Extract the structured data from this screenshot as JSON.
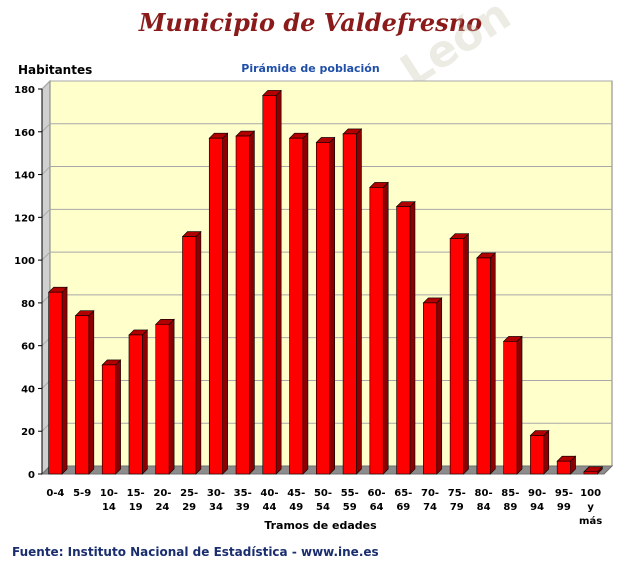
{
  "title": "Municipio de Valdefresno",
  "footer": "Fuente: Instituto Nacional de Estadística - www.ine.es",
  "watermark": "Diputación de León",
  "colors": {
    "bar": "#ff0000",
    "bar_side": "#8b0000",
    "plot_bg": "#ffffcc",
    "title": "#8b1a1a",
    "subtitle": "#1f4fa8"
  },
  "chart_data": {
    "type": "bar",
    "title": "Pirámide de población",
    "ylabel": "Habitantes",
    "xlabel": "Tramos de edades",
    "ylim": [
      0,
      180
    ],
    "yticks": [
      0,
      20,
      40,
      60,
      80,
      100,
      120,
      140,
      160,
      180
    ],
    "grid": true,
    "categories": [
      [
        "0-4"
      ],
      [
        "5-9"
      ],
      [
        "10-",
        "14"
      ],
      [
        "15-",
        "19"
      ],
      [
        "20-",
        "24"
      ],
      [
        "25-",
        "29"
      ],
      [
        "30-",
        "34"
      ],
      [
        "35-",
        "39"
      ],
      [
        "40-",
        "44"
      ],
      [
        "45-",
        "49"
      ],
      [
        "50-",
        "54"
      ],
      [
        "55-",
        "59"
      ],
      [
        "60-",
        "64"
      ],
      [
        "65-",
        "69"
      ],
      [
        "70-",
        "74"
      ],
      [
        "75-",
        "79"
      ],
      [
        "80-",
        "84"
      ],
      [
        "85-",
        "89"
      ],
      [
        "90-",
        "94"
      ],
      [
        "95-",
        "99"
      ],
      [
        "100",
        "y",
        "más"
      ]
    ],
    "values": [
      85,
      74,
      51,
      65,
      70,
      111,
      157,
      158,
      177,
      157,
      155,
      159,
      134,
      125,
      80,
      110,
      101,
      62,
      18,
      6,
      1
    ]
  }
}
